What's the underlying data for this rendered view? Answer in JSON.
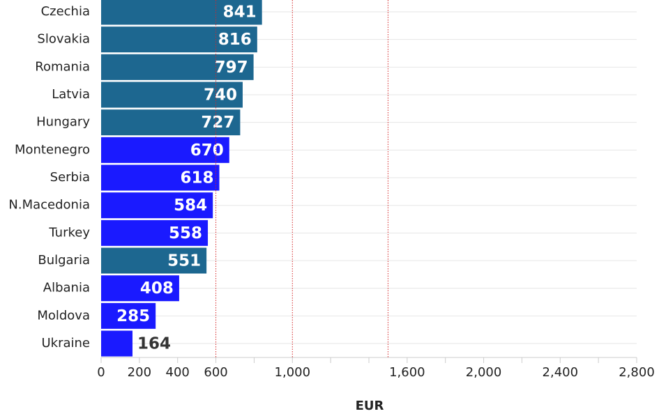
{
  "chart_data": {
    "type": "hbar",
    "categories": [
      "Czechia",
      "Slovakia",
      "Romania",
      "Latvia",
      "Hungary",
      "Montenegro",
      "Serbia",
      "N.Macedonia",
      "Turkey",
      "Bulgaria",
      "Albania",
      "Moldova",
      "Ukraine"
    ],
    "values": [
      841,
      816,
      797,
      740,
      727,
      670,
      618,
      584,
      558,
      551,
      408,
      285,
      164
    ],
    "colors": [
      "#1d6790",
      "#1d6790",
      "#1d6790",
      "#1d6790",
      "#1d6790",
      "#1a1aff",
      "#1a1aff",
      "#1a1aff",
      "#1a1aff",
      "#1d6790",
      "#1a1aff",
      "#1a1aff",
      "#1a1aff"
    ],
    "xlabel": "EUR",
    "xlim": [
      0,
      2800
    ],
    "xticks": [
      0,
      200,
      400,
      600,
      {
        "value": 1000,
        "label": "1,000"
      },
      {
        "value": 1600,
        "label": "1,600"
      },
      {
        "value": 2000,
        "label": "2,000"
      },
      {
        "value": 2400,
        "label": "2,400"
      },
      {
        "value": 2800,
        "label": "2,800"
      }
    ],
    "xminorticks": [
      800,
      1200,
      1400,
      1800,
      2200,
      2600
    ],
    "reference_lines": [
      600,
      1000,
      1500
    ],
    "reference_color": "#d62728",
    "grid": true
  }
}
